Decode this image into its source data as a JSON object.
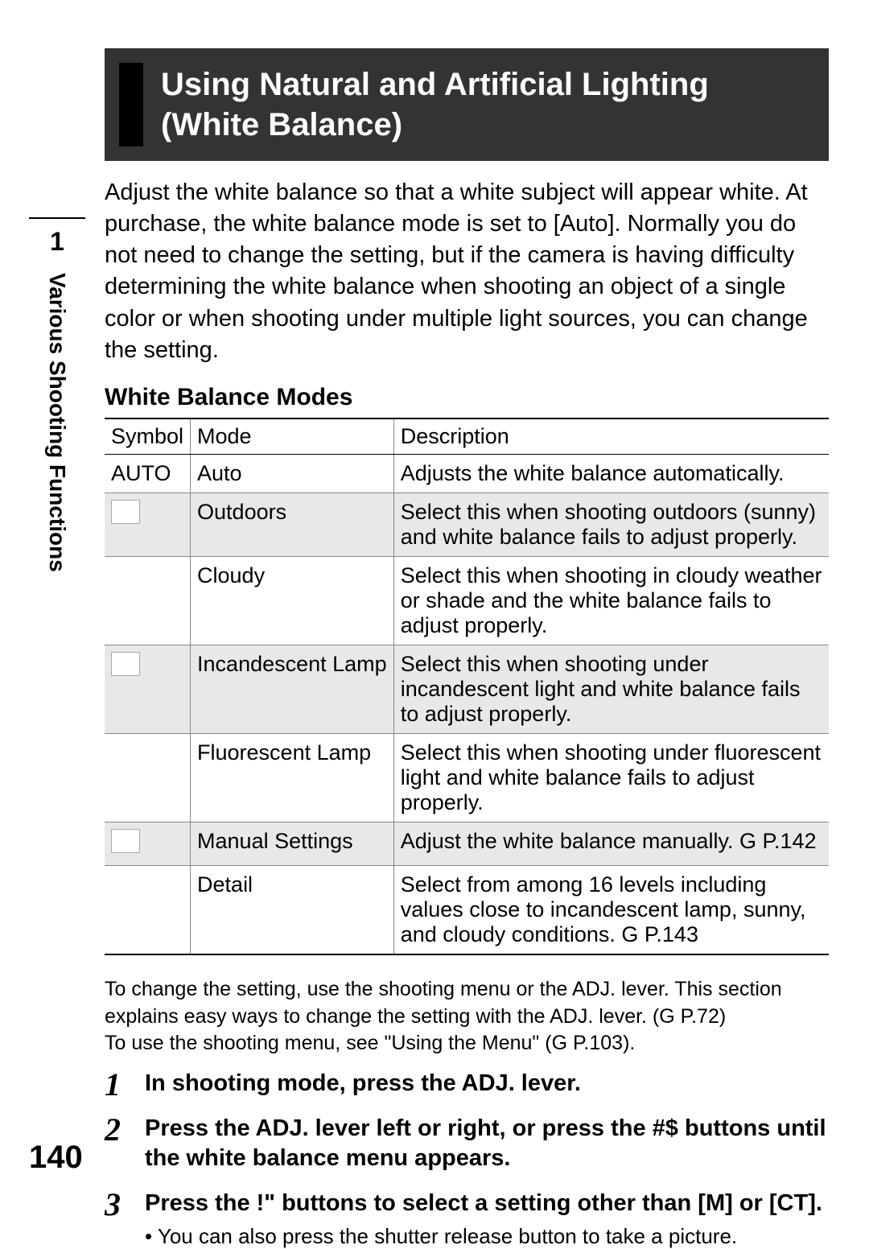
{
  "side": {
    "chapter": "1",
    "label": "Various Shooting Functions"
  },
  "pageNumber": "140",
  "title": "Using Natural and Artificial Lighting (White Balance)",
  "intro": "Adjust the white balance so that a white subject will appear white. At purchase, the white balance mode is set to [Auto]. Normally you do not need to change the setting, but if the camera is having difficulty determining the white balance when shooting an object of a single color or when shooting under multiple light sources, you can change the setting.",
  "subheading": "White Balance Modes",
  "table": {
    "headers": {
      "symbol": "Symbol",
      "mode": "Mode",
      "description": "Description"
    },
    "rows": [
      {
        "symbol": "AUTO",
        "mode": "Auto",
        "description": "Adjusts the white balance automatically.",
        "shade": false,
        "icon": false
      },
      {
        "symbol": "",
        "mode": "Outdoors",
        "description": "Select this when shooting outdoors (sunny) and white balance fails to adjust properly.",
        "shade": true,
        "icon": true
      },
      {
        "symbol": "",
        "mode": "Cloudy",
        "description": "Select this when shooting in cloudy weather or shade and the white balance fails to adjust properly.",
        "shade": false,
        "icon": false
      },
      {
        "symbol": "",
        "mode": "Incandescent Lamp",
        "description": "Select this when shooting under incandescent light and white balance fails to adjust properly.",
        "shade": true,
        "icon": true
      },
      {
        "symbol": "",
        "mode": "Fluorescent Lamp",
        "description": "Select this when shooting under fluorescent light and white balance fails to adjust properly.",
        "shade": false,
        "icon": false
      },
      {
        "symbol": "",
        "mode": "Manual Settings",
        "description": "Adjust the white balance manually. G P.142",
        "shade": true,
        "icon": true
      },
      {
        "symbol": "",
        "mode": "Detail",
        "description": "Select from among 16 levels including values close to incandescent lamp, sunny, and cloudy conditions. G P.143",
        "shade": false,
        "icon": false
      }
    ]
  },
  "note1": "To change the setting, use the shooting menu or the ADJ. lever. This section explains easy ways to change the setting with the ADJ. lever. (G P.72)",
  "note2": "To use the shooting menu, see \"Using the Menu\" (G P.103).",
  "steps": [
    {
      "head": "In shooting mode, press the ADJ. lever.",
      "sub": ""
    },
    {
      "head": "Press the ADJ. lever left or right, or press the #$ buttons until the white balance menu appears.",
      "sub": ""
    },
    {
      "head": "Press the !\" buttons to select a setting other than [M] or [CT].",
      "sub": "You can also press the shutter release button to take a picture."
    }
  ]
}
